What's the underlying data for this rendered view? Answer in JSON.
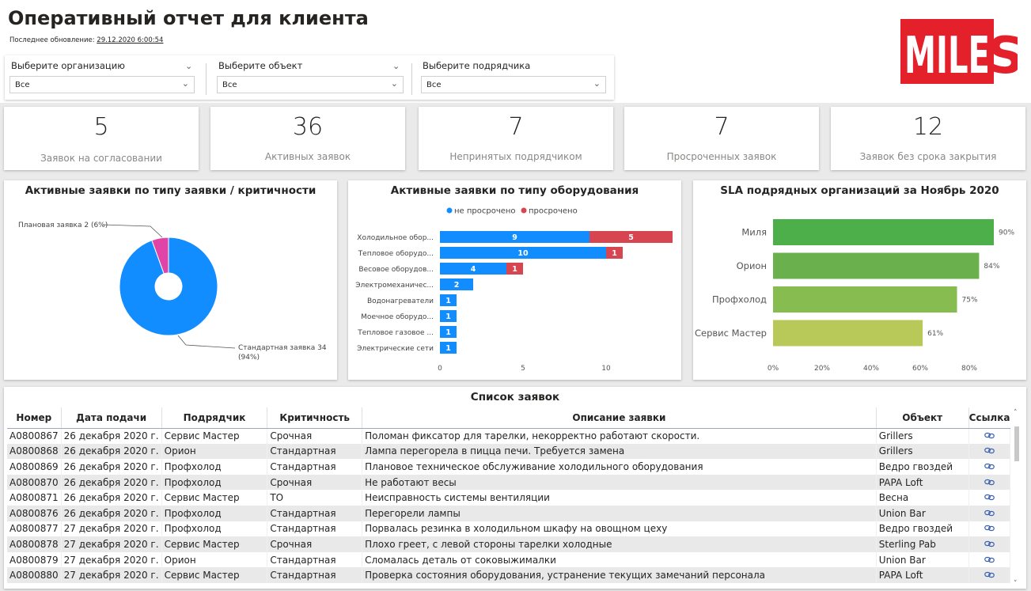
{
  "header": {
    "title": "Оперативный отчет для клиента",
    "updated_label": "Последнее обновление:",
    "updated_value": "29.12.2020 6:00:54",
    "logo_text_left": "MILE",
    "logo_text_right": "S"
  },
  "filters": [
    {
      "label": "Выберите организацию",
      "value": "Все"
    },
    {
      "label": "Выберите объект",
      "value": "Все"
    },
    {
      "label": "Выберите подрядчика",
      "value": "Все"
    }
  ],
  "kpis": [
    {
      "value": "5",
      "caption": "Заявок на согласовании"
    },
    {
      "value": "36",
      "caption": "Активных заявок"
    },
    {
      "value": "7",
      "caption": "Непринятых подрядчиком"
    },
    {
      "value": "7",
      "caption": "Просроченных заявок"
    },
    {
      "value": "12",
      "caption": "Заявок без срока закрытия"
    }
  ],
  "chart_data": [
    {
      "type": "pie",
      "title": "Активные заявки по типу заявки / критичности",
      "slices": [
        {
          "label": "Стандартная заявка",
          "value": 34,
          "pct": "94%",
          "color": "#118dff"
        },
        {
          "label": "Плановая заявка",
          "value": 2,
          "pct": "6%",
          "color": "#e044a7"
        }
      ],
      "label_texts": [
        "Плановая заявка 2 (6%)",
        "Стандартная заявка 34",
        "(94%)"
      ]
    },
    {
      "type": "bar",
      "title": "Активные заявки по типу оборудования",
      "legend": [
        "не просрочено",
        "просрочено"
      ],
      "legend_colors": [
        "#118dff",
        "#d64550"
      ],
      "categories": [
        "Холодильное обор...",
        "Тепловое оборудо...",
        "Весовое оборудов...",
        "Электромеханичес...",
        "Водонагреватели",
        "Моечное оборудо...",
        "Тепловое газовое ...",
        "Электрические сети"
      ],
      "series": [
        {
          "name": "не просрочено",
          "values": [
            9,
            10,
            4,
            2,
            1,
            1,
            1,
            1
          ]
        },
        {
          "name": "просрочено",
          "values": [
            5,
            1,
            1,
            0,
            0,
            0,
            0,
            0
          ]
        }
      ],
      "xticks": [
        "0",
        "5",
        "10"
      ],
      "xlim": [
        0,
        14
      ]
    },
    {
      "type": "bar",
      "title": "SLA подрядных организаций за Ноябрь 2020",
      "categories": [
        "Миля",
        "Орион",
        "Профхолод",
        "Сервис Мастер"
      ],
      "values": [
        90,
        84,
        75,
        61
      ],
      "value_labels": [
        "90%",
        "84%",
        "75%",
        "61%"
      ],
      "colors": [
        "#4daf4a",
        "#6ab04c",
        "#86bc50",
        "#b8c95a"
      ],
      "xticks": [
        "0%",
        "20%",
        "40%",
        "60%",
        "80%"
      ],
      "xlim": [
        0,
        90
      ]
    }
  ],
  "table": {
    "title": "Список заявок",
    "columns": [
      "Номер",
      "Дата подачи",
      "Подрядчик",
      "Критичность",
      "Описание заявки",
      "Объект",
      "Ссылка"
    ],
    "rows": [
      [
        "A0800867",
        "26 декабря 2020 г.",
        "Сервис Мастер",
        "Срочная",
        "Поломан фиксатор для тарелки, некорректно работают скорости.",
        "Grillers"
      ],
      [
        "A0800868",
        "26 декабря 2020 г.",
        "Орион",
        "Стандартная",
        "Лампа перегорела в пицца печи. Требуется замена",
        "Grillers"
      ],
      [
        "A0800869",
        "26 декабря 2020 г.",
        "Профхолод",
        "Стандартная",
        "Плановое техническое обслуживание холодильного оборудования",
        "Ведро гвоздей"
      ],
      [
        "A0800870",
        "26 декабря 2020 г.",
        "Профхолод",
        "Срочная",
        "Не работают весы",
        "PAPA Loft"
      ],
      [
        "A0800871",
        "26 декабря 2020 г.",
        "Сервис Мастер",
        "ТО",
        "Неисправность системы вентиляции",
        "Весна"
      ],
      [
        "A0800876",
        "26 декабря 2020 г.",
        "Профхолод",
        "Стандартная",
        "Перегорели лампы",
        "Union Bar"
      ],
      [
        "A0800877",
        "27 декабря 2020 г.",
        "Профхолод",
        "Стандартная",
        "Порвалась резинка в холодильном шкафу на овощном цеху",
        "Ведро гвоздей"
      ],
      [
        "A0800878",
        "27 декабря 2020 г.",
        "Сервис Мастер",
        "Срочная",
        "Плохо греет, с левой стороны тарелки холодные",
        "Sterling Pab"
      ],
      [
        "A0800879",
        "27 декабря 2020 г.",
        "Орион",
        "Стандартная",
        "Сломалась деталь от соковыжималки",
        "Union Bar"
      ],
      [
        "A0800880",
        "27 декабря 2020 г.",
        "Сервис Мастер",
        "Стандартная",
        "Проверка состояния оборудования, устранение текущих замечаний персонала",
        "PAPA Loft"
      ]
    ],
    "link_icon": "link-icon"
  }
}
